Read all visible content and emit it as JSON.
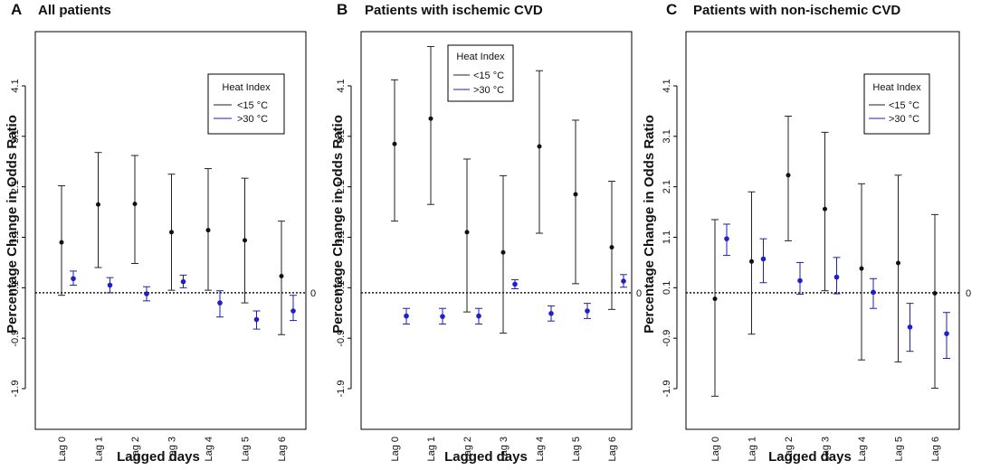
{
  "chart_data": [
    {
      "type": "errorbar",
      "panel_letter": "A",
      "title": "All patients",
      "xlabel": "Lagged days",
      "ylabel": "Percentage Change in Odds Ratio",
      "categories": [
        "Lag 0",
        "Lag 1",
        "Lag 2",
        "Lag 3",
        "Lag 4",
        "Lag 5",
        "Lag 6"
      ],
      "yticks": [
        "-1.9",
        "-0.9",
        "0.1",
        "1.1",
        "2.1",
        "3.1",
        "4.1"
      ],
      "ylim": [
        -2.3,
        5.0
      ],
      "reference_line": {
        "value": 0,
        "label": "0"
      },
      "legend": {
        "title": "Heat Index",
        "entries": [
          "<15 °C",
          ">30 °C"
        ]
      },
      "series": [
        {
          "name": "<15 °C",
          "color": "#222222",
          "mean": [
            1.0,
            1.75,
            1.76,
            1.2,
            1.24,
            1.04,
            0.33
          ],
          "lower": [
            -0.05,
            0.5,
            0.58,
            0.05,
            0.05,
            -0.2,
            -0.83
          ],
          "upper": [
            2.12,
            2.78,
            2.72,
            2.35,
            2.46,
            2.27,
            1.42
          ]
        },
        {
          "name": ">30 °C",
          "color": "#1f1fa8",
          "mean": [
            0.28,
            0.15,
            -0.02,
            0.22,
            -0.2,
            -0.53,
            -0.36
          ],
          "lower": [
            0.15,
            0.0,
            -0.16,
            0.1,
            -0.48,
            -0.72,
            -0.55
          ],
          "upper": [
            0.43,
            0.3,
            0.12,
            0.35,
            0.04,
            -0.36,
            -0.05
          ]
        }
      ]
    },
    {
      "type": "errorbar",
      "panel_letter": "B",
      "title": "Patients with ischemic CVD",
      "xlabel": "Lagged days",
      "ylabel": "Percentage Change in Odds Ratio",
      "categories": [
        "Lag 0",
        "Lag 1",
        "Lag 2",
        "Lag 3",
        "Lag 4",
        "Lag 5",
        "Lag 6"
      ],
      "yticks": [
        "-1.9",
        "-0.9",
        "0.1",
        "1.1",
        "2.1",
        "3.1",
        "4.1"
      ],
      "ylim": [
        -2.3,
        5.0
      ],
      "reference_line": {
        "value": 0,
        "label": "0"
      },
      "legend": {
        "title": "Heat Index",
        "entries": [
          "<15 °C",
          ">30 °C"
        ]
      },
      "series": [
        {
          "name": "<15 °C",
          "color": "#222222",
          "mean": [
            2.95,
            3.45,
            1.2,
            0.8,
            2.9,
            1.95,
            0.9
          ],
          "lower": [
            1.42,
            1.75,
            -0.38,
            -0.8,
            1.18,
            0.18,
            -0.33
          ],
          "upper": [
            4.22,
            4.88,
            2.65,
            2.32,
            4.4,
            3.42,
            2.21
          ]
        },
        {
          "name": ">30 °C",
          "color": "#1f1fa8",
          "mean": [
            -0.46,
            -0.47,
            -0.46,
            0.17,
            -0.41,
            -0.36,
            0.23
          ],
          "lower": [
            -0.62,
            -0.62,
            -0.62,
            0.08,
            -0.56,
            -0.51,
            0.11
          ],
          "upper": [
            -0.31,
            -0.31,
            -0.31,
            0.26,
            -0.26,
            -0.21,
            0.36
          ]
        }
      ]
    },
    {
      "type": "errorbar",
      "panel_letter": "C",
      "title": "Patients with non-ischemic CVD",
      "xlabel": "Lagged days",
      "ylabel": "Percentage Change in Odds Ratio",
      "categories": [
        "Lag 0",
        "Lag 1",
        "Lag 2",
        "Lag 3",
        "Lag 4",
        "Lag 5",
        "Lag 6"
      ],
      "yticks": [
        "-1.9",
        "-0.9",
        "0.1",
        "1.1",
        "2.1",
        "3.1",
        "4.1"
      ],
      "ylim": [
        -2.3,
        5.0
      ],
      "reference_line": {
        "value": 0,
        "label": "0"
      },
      "legend": {
        "title": "Heat Index",
        "entries": [
          "<15 °C",
          ">30 °C"
        ]
      },
      "series": [
        {
          "name": "<15 °C",
          "color": "#222222",
          "mean": [
            -0.12,
            0.62,
            2.33,
            1.66,
            0.48,
            0.59,
            -0.01
          ],
          "lower": [
            -2.05,
            -0.82,
            1.03,
            0.04,
            -1.33,
            -1.37,
            -1.89
          ],
          "upper": [
            1.45,
            2.0,
            3.5,
            3.18,
            2.16,
            2.33,
            1.55
          ]
        },
        {
          "name": ">30 °C",
          "color": "#1f1fa8",
          "mean": [
            1.07,
            0.67,
            0.24,
            0.31,
            0.01,
            -0.68,
            -0.81
          ],
          "lower": [
            0.74,
            0.2,
            -0.03,
            -0.02,
            -0.31,
            -1.16,
            -1.3
          ],
          "upper": [
            1.36,
            1.07,
            0.6,
            0.7,
            0.28,
            -0.21,
            -0.39
          ]
        }
      ]
    }
  ]
}
